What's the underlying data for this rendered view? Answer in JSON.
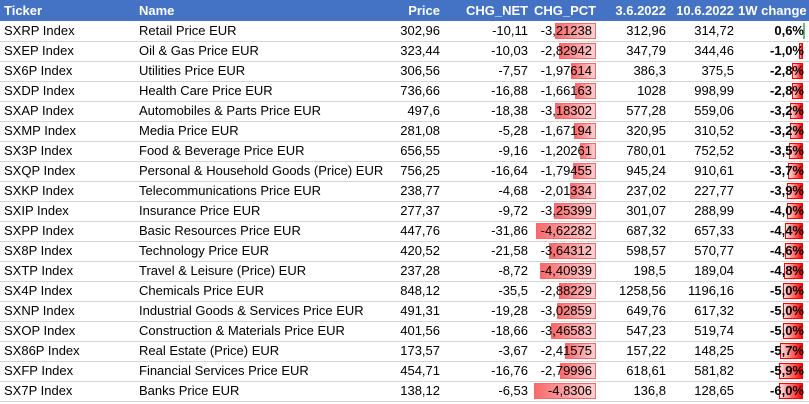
{
  "headers": {
    "ticker": "Ticker",
    "name": "Name",
    "price": "Price",
    "chg_net": "CHG_NET",
    "chg_pct": "CHG_PCT",
    "date1": "3.6.2022",
    "date2": "10.6.2022",
    "week": "1W change"
  },
  "colors": {
    "header_bg": "#4472c4",
    "pct_bar": "#f8696b",
    "pos_bar": "#63be7b",
    "neg_bar": "#ff0000"
  },
  "rows": [
    {
      "ticker": "SXRP Index",
      "name": "Retail Price EUR",
      "price": "302,96",
      "chg_net": "-10,11",
      "chg_pct": "-3,21238",
      "d1": "312,96",
      "d2": "314,72",
      "week": "0,6%",
      "pct_fill": 0.66,
      "week_fill": 0.06,
      "week_pos": true
    },
    {
      "ticker": "SXEP Index",
      "name": "Oil & Gas Price EUR",
      "price": "323,44",
      "chg_net": "-10,03",
      "chg_pct": "-2,82942",
      "d1": "347,79",
      "d2": "344,46",
      "week": "-1,0%",
      "pct_fill": 0.59,
      "week_fill": 0.1,
      "week_pos": false
    },
    {
      "ticker": "SX6P Index",
      "name": "Utilities Price EUR",
      "price": "306,56",
      "chg_net": "-7,57",
      "chg_pct": "-1,97614",
      "d1": "386,3",
      "d2": "375,5",
      "week": "-2,8%",
      "pct_fill": 0.41,
      "week_fill": 0.28,
      "week_pos": false
    },
    {
      "ticker": "SXDP Index",
      "name": "Health Care Price EUR",
      "price": "736,66",
      "chg_net": "-16,88",
      "chg_pct": "-1,66163",
      "d1": "1028",
      "d2": "998,99",
      "week": "-2,8%",
      "pct_fill": 0.34,
      "week_fill": 0.28,
      "week_pos": false
    },
    {
      "ticker": "SXAP Index",
      "name": "Automobiles & Parts Price EUR",
      "price": "497,6",
      "chg_net": "-18,38",
      "chg_pct": "-3,18302",
      "d1": "577,28",
      "d2": "559,06",
      "week": "-3,2%",
      "pct_fill": 0.66,
      "week_fill": 0.32,
      "week_pos": false
    },
    {
      "ticker": "SXMP Index",
      "name": "Media Price EUR",
      "price": "281,08",
      "chg_net": "-5,28",
      "chg_pct": "-1,67194",
      "d1": "320,95",
      "d2": "310,52",
      "week": "-3,2%",
      "pct_fill": 0.35,
      "week_fill": 0.32,
      "week_pos": false
    },
    {
      "ticker": "SX3P Index",
      "name": "Food & Beverage Price EUR",
      "price": "656,55",
      "chg_net": "-9,16",
      "chg_pct": "-1,20261",
      "d1": "780,01",
      "d2": "752,52",
      "week": "-3,5%",
      "pct_fill": 0.25,
      "week_fill": 0.35,
      "week_pos": false
    },
    {
      "ticker": "SXQP Index",
      "name": "Personal & Household Goods (Price) EUR",
      "price": "756,25",
      "chg_net": "-16,64",
      "chg_pct": "-1,79455",
      "d1": "945,24",
      "d2": "910,61",
      "week": "-3,7%",
      "pct_fill": 0.37,
      "week_fill": 0.37,
      "week_pos": false
    },
    {
      "ticker": "SXKP Index",
      "name": "Telecommunications Price EUR",
      "price": "238,77",
      "chg_net": "-4,68",
      "chg_pct": "-2,01334",
      "d1": "237,02",
      "d2": "227,77",
      "week": "-3,9%",
      "pct_fill": 0.42,
      "week_fill": 0.39,
      "week_pos": false
    },
    {
      "ticker": "SXIP Index",
      "name": "Insurance Price EUR",
      "price": "277,37",
      "chg_net": "-9,72",
      "chg_pct": "-3,25399",
      "d1": "301,07",
      "d2": "288,99",
      "week": "-4,0%",
      "pct_fill": 0.67,
      "week_fill": 0.4,
      "week_pos": false
    },
    {
      "ticker": "SXPP Index",
      "name": "Basic Resources Price EUR",
      "price": "447,76",
      "chg_net": "-31,86",
      "chg_pct": "-4,62282",
      "d1": "687,32",
      "d2": "657,33",
      "week": "-4,4%",
      "pct_fill": 0.96,
      "week_fill": 0.44,
      "week_pos": false
    },
    {
      "ticker": "SX8P Index",
      "name": "Technology Price EUR",
      "price": "420,52",
      "chg_net": "-21,58",
      "chg_pct": "-3,64312",
      "d1": "598,57",
      "d2": "570,77",
      "week": "-4,6%",
      "pct_fill": 0.75,
      "week_fill": 0.46,
      "week_pos": false
    },
    {
      "ticker": "SXTP Index",
      "name": "Travel & Leisure (Price) EUR",
      "price": "237,28",
      "chg_net": "-8,72",
      "chg_pct": "-4,40939",
      "d1": "198,5",
      "d2": "189,04",
      "week": "-4,8%",
      "pct_fill": 0.91,
      "week_fill": 0.48,
      "week_pos": false
    },
    {
      "ticker": "SX4P Index",
      "name": "Chemicals Price EUR",
      "price": "848,12",
      "chg_net": "-35,5",
      "chg_pct": "-2,88229",
      "d1": "1258,56",
      "d2": "1196,16",
      "week": "-5,0%",
      "pct_fill": 0.6,
      "week_fill": 0.5,
      "week_pos": false
    },
    {
      "ticker": "SXNP Index",
      "name": "Industrial Goods & Services Price EUR",
      "price": "491,31",
      "chg_net": "-19,28",
      "chg_pct": "-3,02859",
      "d1": "649,76",
      "d2": "617,32",
      "week": "-5,0%",
      "pct_fill": 0.63,
      "week_fill": 0.5,
      "week_pos": false
    },
    {
      "ticker": "SXOP Index",
      "name": "Construction & Materials Price EUR",
      "price": "401,56",
      "chg_net": "-18,66",
      "chg_pct": "-3,46583",
      "d1": "547,23",
      "d2": "519,74",
      "week": "-5,0%",
      "pct_fill": 0.72,
      "week_fill": 0.5,
      "week_pos": false
    },
    {
      "ticker": "SX86P Index",
      "name": "Real Estate (Price) EUR",
      "price": "173,57",
      "chg_net": "-3,67",
      "chg_pct": "-2,41575",
      "d1": "157,22",
      "d2": "148,25",
      "week": "-5,7%",
      "pct_fill": 0.5,
      "week_fill": 0.57,
      "week_pos": false
    },
    {
      "ticker": "SXFP Index",
      "name": "Financial Services Price EUR",
      "price": "454,71",
      "chg_net": "-16,76",
      "chg_pct": "-2,79996",
      "d1": "618,61",
      "d2": "581,82",
      "week": "-5,9%",
      "pct_fill": 0.58,
      "week_fill": 0.59,
      "week_pos": false
    },
    {
      "ticker": "SX7P Index",
      "name": "Banks Price EUR",
      "price": "138,12",
      "chg_net": "-6,53",
      "chg_pct": "-4,8306",
      "d1": "136,8",
      "d2": "128,65",
      "week": "-6,0%",
      "pct_fill": 1.0,
      "week_fill": 0.6,
      "week_pos": false
    }
  ]
}
